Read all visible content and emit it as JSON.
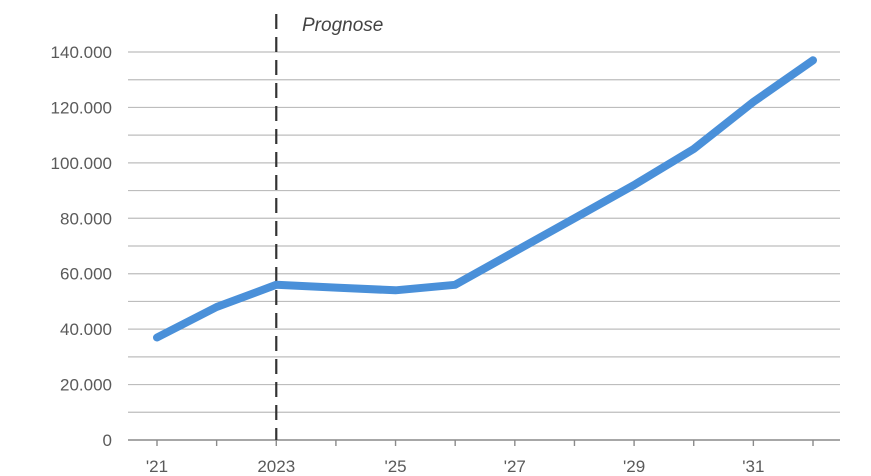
{
  "chart_data": {
    "type": "line",
    "title": "",
    "xlabel": "",
    "ylabel": "",
    "x": [
      2021,
      2022,
      2023,
      2024,
      2025,
      2026,
      2027,
      2028,
      2029,
      2030,
      2031,
      2032
    ],
    "series": [
      {
        "values": [
          37000,
          48000,
          56000,
          55000,
          54000,
          56000,
          68000,
          80000,
          92000,
          105000,
          122000,
          137000
        ]
      }
    ],
    "xlim": [
      2021,
      2032
    ],
    "ylim": [
      0,
      140000
    ],
    "yticks": [
      0,
      20000,
      40000,
      60000,
      80000,
      100000,
      120000,
      140000
    ],
    "ytick_labels": [
      "0",
      "20.000",
      "40.000",
      "60.000",
      "80.000",
      "100.000",
      "120.000",
      "140.000"
    ],
    "xticks": [
      2021,
      2023,
      2025,
      2027,
      2029,
      2031
    ],
    "xtick_labels": [
      "'21",
      "2023",
      "'25",
      "'27",
      "'29",
      "'31"
    ],
    "grid": true,
    "forecast_start": 2023,
    "annotation": "Prognose",
    "colors": {
      "line": "#4a90d9",
      "grid": "#bdbdbd",
      "axis": "#8a8a8a",
      "divider": "#333333"
    }
  }
}
